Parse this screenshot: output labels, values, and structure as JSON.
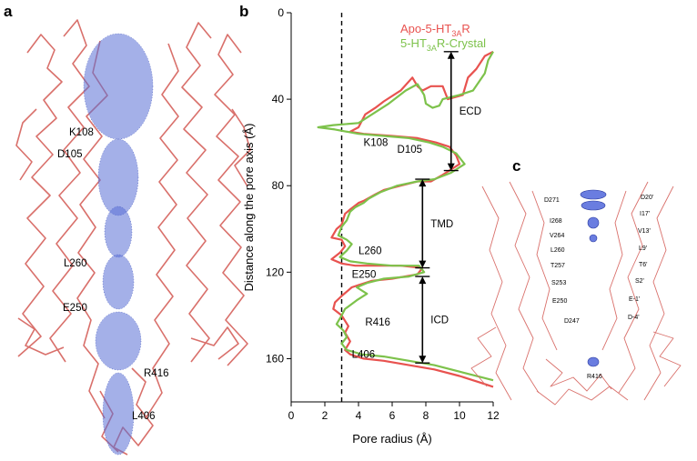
{
  "panel_a": {
    "letter": "a",
    "residue_labels": [
      "K108",
      "D105",
      "L260",
      "E250",
      "R416",
      "L406"
    ]
  },
  "panel_b": {
    "letter": "b",
    "region_labels": [
      "ECD",
      "TMD",
      "ICD"
    ],
    "residue_labels": [
      "K108",
      "D105",
      "L260",
      "E250",
      "R416",
      "L406"
    ]
  },
  "panel_c": {
    "letter": "c",
    "left_labels": [
      "D271",
      "I268",
      "V264",
      "L260",
      "T257",
      "S253",
      "E250",
      "D247"
    ],
    "right_labels": [
      "D20'",
      "I17'",
      "V13'",
      "L9'",
      "T6'",
      "S2'",
      "E-1'",
      "D-4'"
    ],
    "bottom_label": "R416"
  },
  "chart_data": {
    "type": "line",
    "xlabel": "Pore radius (Å)",
    "ylabel": "Distance along the pore axis (Å)",
    "xlim": [
      0,
      12
    ],
    "ylim": [
      0,
      180
    ],
    "y_inverted": true,
    "x_ticks": [
      0,
      2,
      4,
      6,
      8,
      10,
      12
    ],
    "y_ticks": [
      0,
      40,
      80,
      120,
      160
    ],
    "reference_line_x": 3,
    "legend_position": "top-right",
    "legend": [
      "Apo-5-HT",
      "5-HT",
      "R-Crystal"
    ],
    "legend_sub": "3A",
    "legend_suffix": "R",
    "series": [
      {
        "name": "Apo-5-HT3AR",
        "color": "#e8524f",
        "points": [
          [
            12,
            18
          ],
          [
            11.5,
            20
          ],
          [
            11,
            26
          ],
          [
            10.5,
            30
          ],
          [
            10.2,
            38
          ],
          [
            9.3,
            40
          ],
          [
            9.0,
            34
          ],
          [
            8.3,
            34
          ],
          [
            7.8,
            36
          ],
          [
            7.5,
            34
          ],
          [
            7.2,
            30
          ],
          [
            6.5,
            36
          ],
          [
            5.5,
            41
          ],
          [
            5.0,
            44
          ],
          [
            4.4,
            47
          ],
          [
            4.2,
            50
          ],
          [
            4.0,
            53
          ],
          [
            3.5,
            55
          ],
          [
            4.3,
            56
          ],
          [
            6.0,
            57
          ],
          [
            7.5,
            58
          ],
          [
            8.6,
            60
          ],
          [
            9.4,
            62
          ],
          [
            9.8,
            66
          ],
          [
            10.0,
            70
          ],
          [
            9.0,
            75
          ],
          [
            8.3,
            78
          ],
          [
            7.5,
            78
          ],
          [
            6.5,
            80
          ],
          [
            5.5,
            82
          ],
          [
            5.0,
            84
          ],
          [
            4.3,
            87
          ],
          [
            4.0,
            88
          ],
          [
            3.5,
            91
          ],
          [
            3.2,
            93
          ],
          [
            3.0,
            98
          ],
          [
            2.7,
            100
          ],
          [
            2.4,
            104
          ],
          [
            3.0,
            105
          ],
          [
            3.2,
            108
          ],
          [
            2.9,
            111
          ],
          [
            2.4,
            114
          ],
          [
            3.0,
            116
          ],
          [
            3.8,
            117
          ],
          [
            5.0,
            117
          ],
          [
            6.5,
            117
          ],
          [
            7.8,
            118
          ],
          [
            7.5,
            121
          ],
          [
            6.0,
            123
          ],
          [
            4.8,
            124
          ],
          [
            4.0,
            126
          ],
          [
            3.6,
            127
          ],
          [
            3.0,
            131
          ],
          [
            2.6,
            134
          ],
          [
            2.5,
            137
          ],
          [
            3.0,
            140
          ],
          [
            3.4,
            145
          ],
          [
            3.2,
            148
          ],
          [
            3.5,
            152
          ],
          [
            3.2,
            156
          ],
          [
            3.5,
            158
          ],
          [
            4.3,
            160
          ],
          [
            5.5,
            161
          ],
          [
            7.0,
            163
          ],
          [
            8.5,
            165
          ],
          [
            10.0,
            168
          ],
          [
            11.2,
            171
          ],
          [
            12,
            173
          ]
        ]
      },
      {
        "name": "5-HT3AR-Crystal",
        "color": "#7dc24b",
        "points": [
          [
            12,
            18
          ],
          [
            11.7,
            22
          ],
          [
            11.5,
            28
          ],
          [
            10.8,
            36
          ],
          [
            10.0,
            38
          ],
          [
            9.0,
            40
          ],
          [
            8.8,
            43
          ],
          [
            8.4,
            44
          ],
          [
            8.0,
            42
          ],
          [
            7.9,
            38
          ],
          [
            7.5,
            33
          ],
          [
            6.8,
            36
          ],
          [
            5.8,
            42
          ],
          [
            4.8,
            47
          ],
          [
            4.0,
            51
          ],
          [
            2.5,
            52
          ],
          [
            1.6,
            53
          ],
          [
            2.6,
            54
          ],
          [
            4.0,
            56
          ],
          [
            5.5,
            57
          ],
          [
            7.0,
            58
          ],
          [
            8.2,
            60
          ],
          [
            9.0,
            62
          ],
          [
            9.8,
            65
          ],
          [
            10.3,
            70
          ],
          [
            9.5,
            74
          ],
          [
            8.5,
            77
          ],
          [
            7.5,
            78
          ],
          [
            6.3,
            80
          ],
          [
            5.3,
            83
          ],
          [
            4.6,
            86
          ],
          [
            4.3,
            88
          ],
          [
            3.8,
            90
          ],
          [
            3.5,
            92
          ],
          [
            3.3,
            96
          ],
          [
            3.0,
            99
          ],
          [
            2.8,
            103
          ],
          [
            3.3,
            105
          ],
          [
            3.6,
            107
          ],
          [
            3.3,
            110
          ],
          [
            2.9,
            113
          ],
          [
            3.5,
            115
          ],
          [
            4.5,
            116
          ],
          [
            6.0,
            117
          ],
          [
            7.6,
            117
          ],
          [
            7.9,
            120
          ],
          [
            7.0,
            122
          ],
          [
            5.5,
            123
          ],
          [
            4.5,
            125
          ],
          [
            3.9,
            127
          ],
          [
            4.5,
            130
          ],
          [
            3.9,
            133
          ],
          [
            3.2,
            137
          ],
          [
            3.0,
            140
          ],
          [
            2.7,
            144
          ],
          [
            3.1,
            147
          ],
          [
            3.3,
            150
          ],
          [
            3.0,
            153
          ],
          [
            3.3,
            156
          ],
          [
            4.2,
            158
          ],
          [
            5.5,
            159
          ],
          [
            7.0,
            161
          ],
          [
            8.5,
            163
          ],
          [
            10.0,
            166
          ],
          [
            11.5,
            169
          ],
          [
            12,
            170
          ]
        ]
      }
    ],
    "annotations": [
      {
        "text": "K108",
        "x": 4.3,
        "y": 60
      },
      {
        "text": "D105",
        "x": 6.3,
        "y": 63
      },
      {
        "text": "L260",
        "x": 4.0,
        "y": 110
      },
      {
        "text": "E250",
        "x": 3.6,
        "y": 121
      },
      {
        "text": "R416",
        "x": 4.4,
        "y": 143
      },
      {
        "text": "L406",
        "x": 3.6,
        "y": 158
      }
    ],
    "region_brackets": [
      {
        "label": "ECD",
        "y_top": 18,
        "y_bottom": 73,
        "x": 9.5
      },
      {
        "label": "TMD",
        "y_top": 77,
        "y_bottom": 118,
        "x": 7.8
      },
      {
        "label": "ICD",
        "y_top": 122,
        "y_bottom": 162,
        "x": 7.8
      }
    ]
  }
}
